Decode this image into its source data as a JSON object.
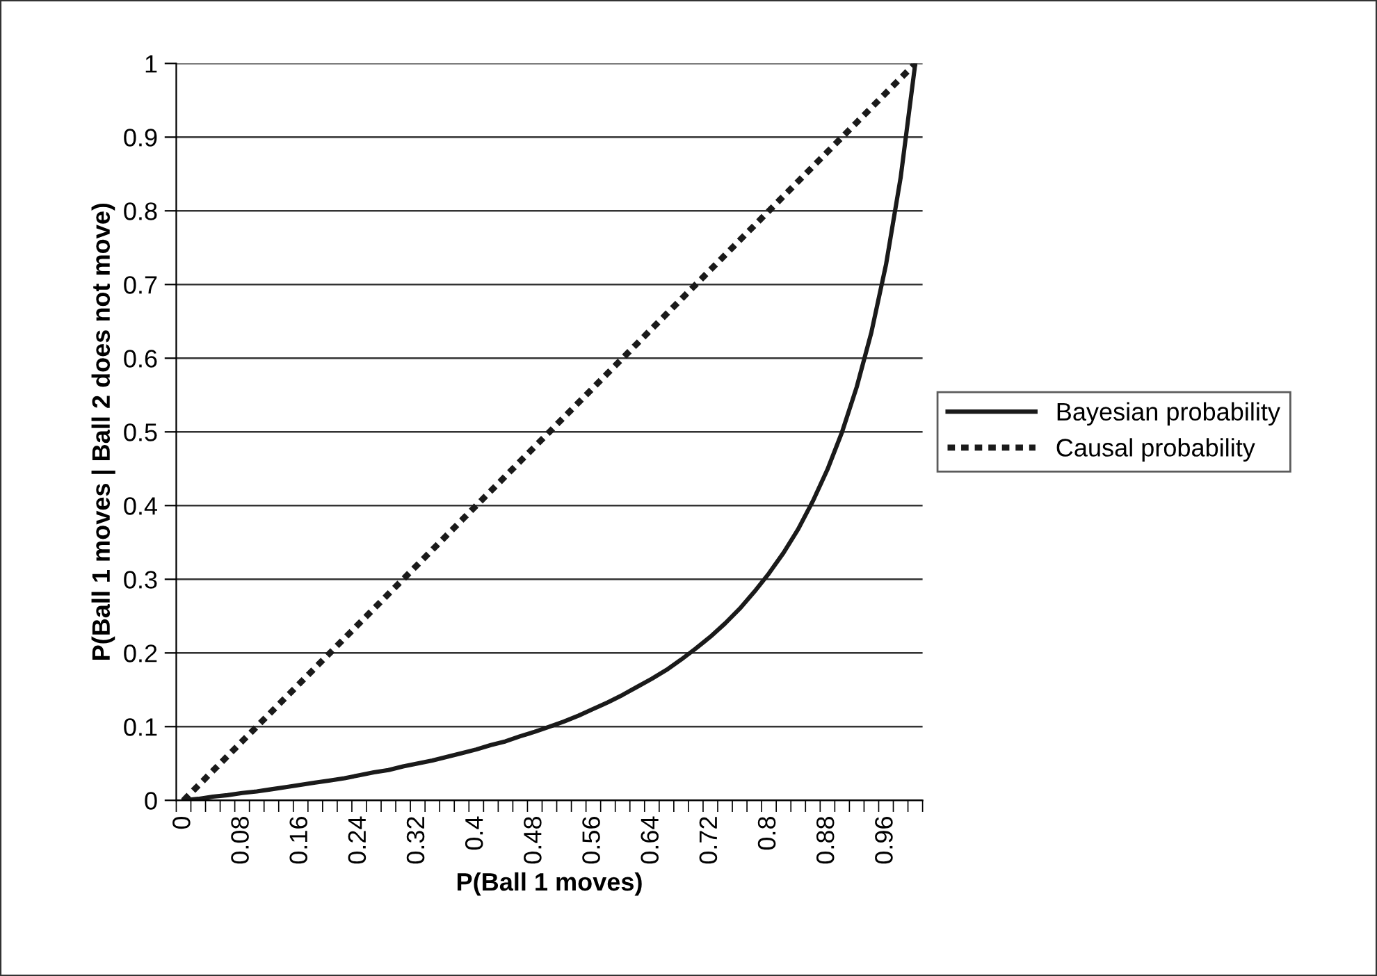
{
  "chart_data": {
    "type": "line",
    "xlabel": "P(Ball 1 moves)",
    "ylabel": "P(Ball 1 moves | Ball 2 does not move)",
    "categories": [
      "0",
      null,
      null,
      null,
      "0.08",
      null,
      null,
      null,
      "0.16",
      null,
      null,
      null,
      "0.24",
      null,
      null,
      null,
      "0.32",
      null,
      null,
      null,
      "0.4",
      null,
      null,
      null,
      "0.48",
      null,
      null,
      null,
      "0.56",
      null,
      null,
      null,
      "0.64",
      null,
      null,
      null,
      "0.72",
      null,
      null,
      null,
      "0.8",
      null,
      null,
      null,
      "0.88",
      null,
      null,
      null,
      "0.96",
      null,
      null
    ],
    "series": [
      {
        "name": "Bayesian probability",
        "color": "#1a1a1a",
        "line_style": "solid",
        "values": [
          0,
          0.002,
          0.005,
          0.007,
          0.01,
          0.012,
          0.015,
          0.018,
          0.021,
          0.024,
          0.027,
          0.03,
          0.034,
          0.038,
          0.041,
          0.046,
          0.05,
          0.054,
          0.059,
          0.064,
          0.069,
          0.075,
          0.08,
          0.087,
          0.093,
          0.1,
          0.107,
          0.115,
          0.124,
          0.133,
          0.143,
          0.154,
          0.165,
          0.177,
          0.191,
          0.206,
          0.222,
          0.24,
          0.26,
          0.283,
          0.308,
          0.336,
          0.368,
          0.406,
          0.449,
          0.5,
          0.561,
          0.635,
          0.727,
          0.845,
          1
        ]
      },
      {
        "name": "Causal probability",
        "color": "#1a1a1a",
        "line_style": "dotted",
        "values": [
          0,
          0.02,
          0.04,
          0.06,
          0.08,
          0.1,
          0.12,
          0.14,
          0.16,
          0.18,
          0.2,
          0.22,
          0.24,
          0.26,
          0.28,
          0.3,
          0.32,
          0.34,
          0.36,
          0.38,
          0.4,
          0.42,
          0.44,
          0.46,
          0.48,
          0.5,
          0.52,
          0.54,
          0.56,
          0.58,
          0.6,
          0.62,
          0.64,
          0.66,
          0.68,
          0.7,
          0.72,
          0.74,
          0.76,
          0.78,
          0.8,
          0.82,
          0.84,
          0.86,
          0.88,
          0.9,
          0.92,
          0.94,
          0.96,
          0.98,
          1
        ]
      }
    ],
    "ylim": [
      0,
      1
    ],
    "yticks": [
      0,
      0.1,
      0.2,
      0.3,
      0.4,
      0.5,
      0.6,
      0.7,
      0.8,
      0.9,
      1
    ],
    "grid": "y",
    "legend": "right",
    "marker": "none"
  }
}
